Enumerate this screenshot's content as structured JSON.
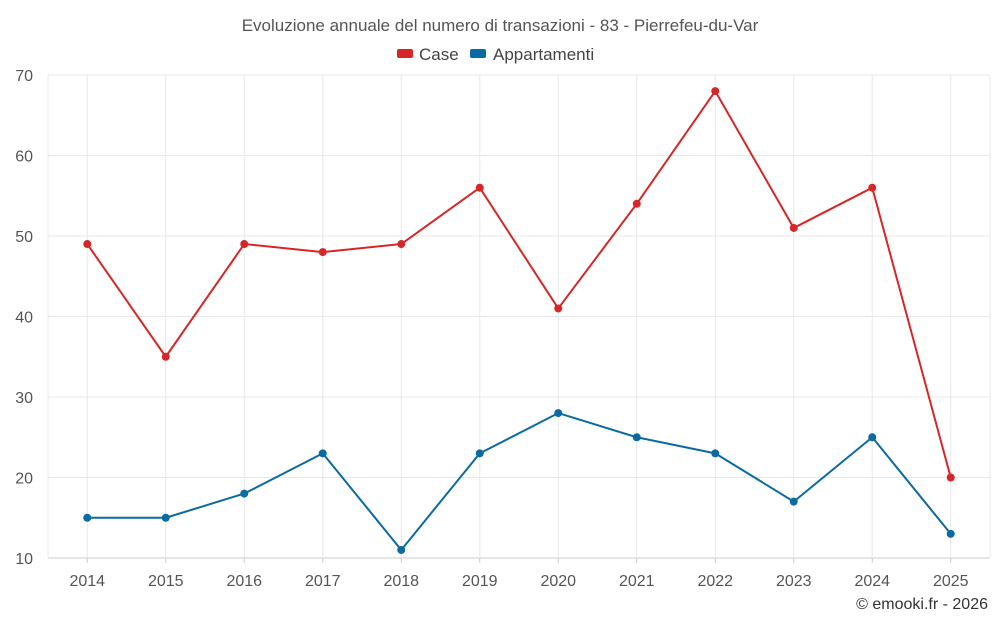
{
  "chart_data": {
    "type": "line",
    "title": "Evoluzione annuale del numero di transazioni - 83 - Pierrefeu-du-Var",
    "categories": [
      "2014",
      "2015",
      "2016",
      "2017",
      "2018",
      "2019",
      "2020",
      "2021",
      "2022",
      "2023",
      "2024",
      "2025"
    ],
    "series": [
      {
        "name": "Case",
        "color": "#d62728",
        "values": [
          49,
          35,
          49,
          48,
          49,
          56,
          41,
          54,
          68,
          51,
          56,
          20
        ]
      },
      {
        "name": "Appartamenti",
        "color": "#0b6aa2",
        "values": [
          15,
          15,
          18,
          23,
          11,
          23,
          28,
          25,
          23,
          17,
          25,
          13
        ]
      }
    ],
    "yticks": [
      10,
      20,
      30,
      40,
      50,
      60,
      70
    ],
    "ylim": [
      10,
      70
    ],
    "xlabel": "",
    "ylabel": "",
    "legend": "top-center",
    "grid": true
  },
  "credit": "© emooki.fr - 2026"
}
